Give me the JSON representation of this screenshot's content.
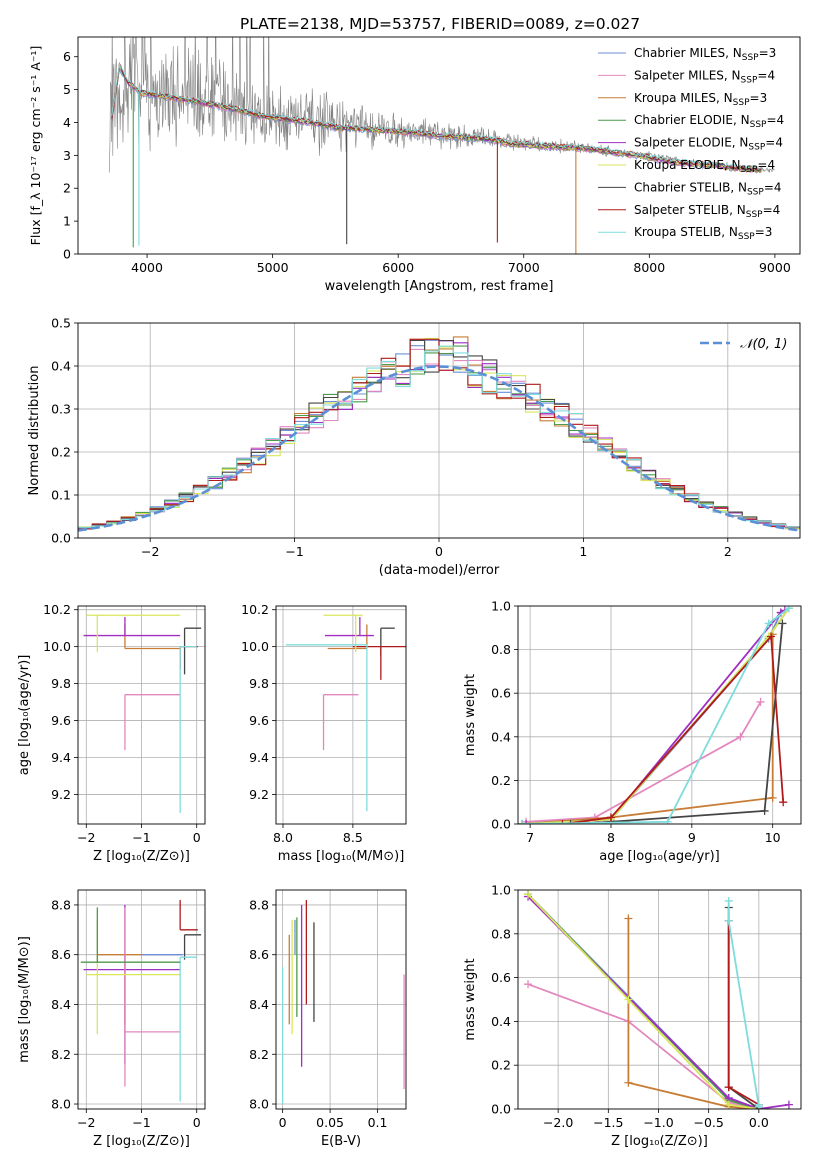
{
  "figure": {
    "title": "PLATE=2138, MJD=53757, FIBERID=0089, z=0.027"
  },
  "series_styles": [
    {
      "name": "Chabrier MILES",
      "nssp": "3",
      "color": "#6f8fd8"
    },
    {
      "name": "Salpeter MILES",
      "nssp": "4",
      "color": "#e388be"
    },
    {
      "name": "Kroupa MILES",
      "nssp": "3",
      "color": "#c77d35"
    },
    {
      "name": "Chabrier ELODIE",
      "nssp": "4",
      "color": "#4c9a4c"
    },
    {
      "name": "Salpeter ELODIE",
      "nssp": "4",
      "color": "#a02ec2"
    },
    {
      "name": "Kroupa ELODIE",
      "nssp": "4",
      "color": "#d9e65c"
    },
    {
      "name": "Chabrier STELIB",
      "nssp": "4",
      "color": "#454545"
    },
    {
      "name": "Salpeter STELIB",
      "nssp": "4",
      "color": "#b01b1b"
    },
    {
      "name": "Kroupa STELIB",
      "nssp": "3",
      "color": "#7fdcdc"
    }
  ],
  "chart_data": [
    {
      "id": "spectrum",
      "type": "line",
      "xlabel": "wavelength [Angstrom, rest frame]",
      "ylabel": "Flux [f_λ 10⁻¹⁷ erg cm⁻² s⁻¹ A⁻¹]",
      "xlim": [
        3450,
        9200
      ],
      "ylim": [
        0,
        6.6
      ],
      "xticks": [
        4000,
        5000,
        6000,
        7000,
        8000,
        9000
      ],
      "yticks": [
        0,
        1,
        2,
        3,
        4,
        5,
        6
      ],
      "data_color": "#808080",
      "data_envelope": {
        "x": [
          3700,
          3800,
          3900,
          4000,
          4200,
          4400,
          4600,
          4800,
          5000,
          5200,
          5400,
          5600,
          5800,
          6000,
          6200,
          6400,
          6600,
          6800,
          7000,
          7200,
          7400,
          7600,
          7800,
          8000,
          8200,
          8400,
          8600,
          8800,
          9000
        ],
        "y": [
          4.2,
          5.3,
          5.2,
          5.0,
          4.9,
          4.75,
          4.55,
          4.4,
          4.2,
          4.1,
          4.0,
          3.9,
          3.8,
          3.75,
          3.7,
          3.6,
          3.55,
          3.5,
          3.35,
          3.3,
          3.25,
          3.2,
          3.05,
          3.0,
          2.85,
          2.75,
          2.7,
          2.6,
          2.55
        ],
        "noise": [
          2.0,
          2.3,
          2.0,
          1.8,
          1.6,
          1.5,
          1.3,
          1.2,
          1.1,
          1.0,
          0.9,
          0.75,
          0.6,
          0.5,
          0.45,
          0.4,
          0.35,
          0.3,
          0.25,
          0.2,
          0.2,
          0.18,
          0.15,
          0.13,
          0.12,
          0.11,
          0.1,
          0.1,
          0.1
        ]
      },
      "model": {
        "x": [
          3720,
          3780,
          3850,
          3950,
          4100,
          4300,
          4500,
          4700,
          4900,
          5100,
          5300,
          5500,
          5700,
          5900,
          6100,
          6300,
          6500,
          6700,
          6900,
          7100,
          7300,
          7500,
          7700,
          7900,
          8100,
          8300,
          8500,
          8700,
          8900
        ],
        "y": [
          4.1,
          5.7,
          5.2,
          4.9,
          4.8,
          4.7,
          4.55,
          4.4,
          4.2,
          4.1,
          4.0,
          3.85,
          3.8,
          3.75,
          3.7,
          3.6,
          3.55,
          3.5,
          3.35,
          3.3,
          3.25,
          3.2,
          3.1,
          3.0,
          2.85,
          2.75,
          2.7,
          2.6,
          2.55
        ]
      },
      "legend": "top-right"
    },
    {
      "id": "residuals",
      "type": "histogram",
      "xlabel": "(data-model)/error",
      "ylabel": "Normed distribution",
      "xlim": [
        -2.5,
        2.5
      ],
      "ylim": [
        0,
        0.5
      ],
      "xticks": [
        -2,
        -1,
        0,
        1,
        2
      ],
      "yticks": [
        0.0,
        0.1,
        0.2,
        0.3,
        0.4,
        0.5
      ],
      "bin_width": 0.1,
      "bins_start": -2.5,
      "reference_label": "𝒩(0, 1)",
      "reference_color": "#5b8fd6",
      "grid": true,
      "legend": "top-right"
    },
    {
      "id": "age-vs-Z",
      "type": "errorbar",
      "xlabel": "Z [log₁₀(Z/Z⊙)]",
      "ylabel": "age [log₁₀(age/yr)]",
      "xlim": [
        -2.15,
        0.15
      ],
      "ylim": [
        9.04,
        10.22
      ],
      "xticks": [
        -2,
        -1,
        0
      ],
      "yticks": [
        9.2,
        9.4,
        9.6,
        9.8,
        10.0,
        10.2
      ],
      "points": [
        {
          "x": -0.22,
          "y": 10.1,
          "xerr": [
            0.0,
            0.3
          ],
          "yerr": [
            0.25,
            0.0
          ],
          "c": 6
        },
        {
          "x": -0.3,
          "y": 10.0,
          "xerr": [
            0.0,
            0.32
          ],
          "yerr": [
            0.12,
            0.0
          ],
          "c": 7
        },
        {
          "x": -1.3,
          "y": 9.99,
          "xerr": [
            0.0,
            1.0
          ],
          "yerr": [
            0.0,
            0.13
          ],
          "c": 2
        },
        {
          "x": -1.3,
          "y": 10.06,
          "xerr": [
            0.75,
            1.0
          ],
          "yerr": [
            0.0,
            0.1
          ],
          "c": 4
        },
        {
          "x": -1.3,
          "y": 9.74,
          "xerr": [
            0.0,
            1.0
          ],
          "yerr": [
            0.3,
            0.0
          ],
          "c": 1
        },
        {
          "x": -1.8,
          "y": 10.17,
          "xerr": [
            0.2,
            1.5
          ],
          "yerr": [
            0.2,
            0.0
          ],
          "c": 5
        },
        {
          "x": -0.3,
          "y": 10.0,
          "xerr": [
            0.0,
            0.3
          ],
          "yerr": [
            0.9,
            0.0
          ],
          "c": 8
        }
      ],
      "grid": true
    },
    {
      "id": "age-vs-mass",
      "type": "errorbar",
      "xlabel": "mass [log₁₀(M/M⊙)]",
      "ylabel": "",
      "xlim": [
        7.95,
        8.88
      ],
      "ylim": [
        9.04,
        10.22
      ],
      "xticks": [
        8.0,
        8.5
      ],
      "yticks": [
        9.2,
        9.4,
        9.6,
        9.8,
        10.0,
        10.2
      ],
      "points": [
        {
          "x": 8.7,
          "y": 10.1,
          "xerr": [
            0.0,
            0.1
          ],
          "yerr": [
            0.15,
            0.0
          ],
          "c": 6
        },
        {
          "x": 8.7,
          "y": 10.0,
          "xerr": [
            0.2,
            0.18
          ],
          "yerr": [
            0.18,
            0.0
          ],
          "c": 7
        },
        {
          "x": 8.6,
          "y": 9.99,
          "xerr": [
            0.28,
            0.0
          ],
          "yerr": [
            0.0,
            0.13
          ],
          "c": 2
        },
        {
          "x": 8.55,
          "y": 10.06,
          "xerr": [
            0.25,
            0.1
          ],
          "yerr": [
            0.0,
            0.1
          ],
          "c": 4
        },
        {
          "x": 8.29,
          "y": 9.74,
          "xerr": [
            0.0,
            0.25
          ],
          "yerr": [
            0.3,
            0.0
          ],
          "c": 1
        },
        {
          "x": 8.52,
          "y": 10.17,
          "xerr": [
            0.23,
            0.05
          ],
          "yerr": [
            0.2,
            0.0
          ],
          "c": 5
        },
        {
          "x": 8.6,
          "y": 10.01,
          "xerr": [
            0.58,
            0.0
          ],
          "yerr": [
            0.9,
            0.0
          ],
          "c": 8
        }
      ],
      "grid": true
    },
    {
      "id": "massweight-vs-age",
      "type": "line",
      "xlabel": "age [log₁₀(age/yr)]",
      "ylabel": "mass weight",
      "xlim": [
        6.85,
        10.35
      ],
      "ylim": [
        0,
        1
      ],
      "xticks": [
        7,
        8,
        9,
        10
      ],
      "yticks": [
        0.0,
        0.2,
        0.4,
        0.6,
        0.8,
        1.0
      ],
      "series": [
        {
          "c": 0,
          "x": [
            6.9,
            8.0,
            9.95,
            10.1
          ],
          "y": [
            0.0,
            0.02,
            0.85,
            0.97
          ]
        },
        {
          "c": 1,
          "x": [
            6.95,
            7.8,
            9.6,
            9.85
          ],
          "y": [
            0.01,
            0.03,
            0.4,
            0.56
          ]
        },
        {
          "c": 2,
          "x": [
            6.9,
            8.0,
            10.0,
            10.0
          ],
          "y": [
            0.0,
            0.03,
            0.12,
            0.87
          ]
        },
        {
          "c": 3,
          "x": [
            6.9,
            8.0,
            9.95,
            10.2
          ],
          "y": [
            0.0,
            0.02,
            0.86,
            0.99
          ]
        },
        {
          "c": 4,
          "x": [
            6.95,
            8.0,
            10.1,
            10.15
          ],
          "y": [
            0.0,
            0.02,
            0.97,
            0.98
          ]
        },
        {
          "c": 5,
          "x": [
            6.9,
            8.0,
            9.95,
            10.2
          ],
          "y": [
            0.0,
            0.02,
            0.86,
            0.99
          ]
        },
        {
          "c": 6,
          "x": [
            7.5,
            8.0,
            9.9,
            10.12
          ],
          "y": [
            0.0,
            0.01,
            0.06,
            0.92
          ]
        },
        {
          "c": 7,
          "x": [
            7.4,
            8.0,
            9.98,
            10.13
          ],
          "y": [
            0.0,
            0.03,
            0.86,
            0.1
          ]
        },
        {
          "c": 8,
          "x": [
            6.9,
            8.7,
            9.95,
            10.2
          ],
          "y": [
            0.0,
            0.01,
            0.92,
            0.99
          ]
        }
      ],
      "grid": true
    },
    {
      "id": "mass-vs-Z",
      "type": "errorbar",
      "xlabel": "Z [log₁₀(Z/Z⊙)]",
      "ylabel": "mass [log₁₀(M/M⊙)]",
      "xlim": [
        -2.15,
        0.15
      ],
      "ylim": [
        7.98,
        8.86
      ],
      "xticks": [
        -2,
        -1,
        0
      ],
      "yticks": [
        8.0,
        8.2,
        8.4,
        8.6,
        8.8
      ],
      "points": [
        {
          "x": -0.22,
          "y": 8.68,
          "xerr": [
            0.0,
            0.3
          ],
          "yerr": [
            0.1,
            0.0
          ],
          "c": 6
        },
        {
          "x": -0.3,
          "y": 8.7,
          "xerr": [
            0.0,
            0.32
          ],
          "yerr": [
            0.0,
            0.12
          ],
          "c": 7
        },
        {
          "x": -1.3,
          "y": 8.6,
          "xerr": [
            0.5,
            1.0
          ],
          "yerr": [
            0.28,
            0.0
          ],
          "c": 2
        },
        {
          "x": -1.3,
          "y": 8.54,
          "xerr": [
            0.75,
            1.0
          ],
          "yerr": [
            0.38,
            0.26
          ],
          "c": 4
        },
        {
          "x": -1.3,
          "y": 8.29,
          "xerr": [
            0.0,
            1.0
          ],
          "yerr": [
            0.22,
            0.5
          ],
          "c": 1
        },
        {
          "x": -1.8,
          "y": 8.52,
          "xerr": [
            0.2,
            1.5
          ],
          "yerr": [
            0.24,
            0.22
          ],
          "c": 5
        },
        {
          "x": -0.3,
          "y": 8.59,
          "xerr": [
            0.0,
            0.3
          ],
          "yerr": [
            0.58,
            0.0
          ],
          "c": 8
        },
        {
          "x": -0.25,
          "y": 8.6,
          "xerr": [
            0.75,
            0.0
          ],
          "yerr": [
            0.0,
            0.0
          ],
          "c": 0
        },
        {
          "x": -1.8,
          "y": 8.57,
          "xerr": [
            0.3,
            1.5
          ],
          "yerr": [
            0.0,
            0.22
          ],
          "c": 3
        }
      ],
      "grid": true
    },
    {
      "id": "mass-vs-ebv",
      "type": "errorbar",
      "xlabel": "E(B-V)",
      "ylabel": "",
      "xlim": [
        -0.007,
        0.13
      ],
      "ylim": [
        7.98,
        8.86
      ],
      "xticks": [
        0.0,
        0.05,
        0.1
      ],
      "yticks": [
        8.0,
        8.2,
        8.4,
        8.6,
        8.8
      ],
      "points": [
        {
          "x": 0.033,
          "y": 8.53,
          "xerr": [
            0.0,
            0.0
          ],
          "yerr": [
            0.2,
            0.2
          ],
          "c": 6
        },
        {
          "x": 0.025,
          "y": 8.7,
          "xerr": [
            0.0,
            0.0
          ],
          "yerr": [
            0.3,
            0.12
          ],
          "c": 7
        },
        {
          "x": 0.007,
          "y": 8.5,
          "xerr": [
            0.0,
            0.0
          ],
          "yerr": [
            0.18,
            0.18
          ],
          "c": 2
        },
        {
          "x": 0.02,
          "y": 8.55,
          "xerr": [
            0.0,
            0.0
          ],
          "yerr": [
            0.4,
            0.25
          ],
          "c": 4
        },
        {
          "x": 0.128,
          "y": 8.29,
          "xerr": [
            0.0,
            0.0
          ],
          "yerr": [
            0.23,
            0.23
          ],
          "c": 1
        },
        {
          "x": 0.01,
          "y": 8.52,
          "xerr": [
            0.0,
            0.0
          ],
          "yerr": [
            0.24,
            0.22
          ],
          "c": 5
        },
        {
          "x": 0.0,
          "y": 8.4,
          "xerr": [
            0.0,
            0.0
          ],
          "yerr": [
            0.4,
            0.15
          ],
          "c": 8
        },
        {
          "x": 0.013,
          "y": 8.6,
          "xerr": [
            0.0,
            0.0
          ],
          "yerr": [
            0.0,
            0.14
          ],
          "c": 0
        },
        {
          "x": 0.015,
          "y": 8.65,
          "xerr": [
            0.0,
            0.0
          ],
          "yerr": [
            0.3,
            0.1
          ],
          "c": 3
        }
      ],
      "grid": true
    },
    {
      "id": "massweight-vs-Z",
      "type": "line",
      "xlabel": "Z [log₁₀(Z/Z⊙)]",
      "ylabel": "mass weight",
      "xlim": [
        -2.4,
        0.42
      ],
      "ylim": [
        0,
        1
      ],
      "xticks": [
        -2.0,
        -1.5,
        -1.0,
        -0.5,
        0.0
      ],
      "yticks": [
        0.0,
        0.2,
        0.4,
        0.6,
        0.8,
        1.0
      ],
      "series": [
        {
          "c": 0,
          "x": [
            -2.3,
            -0.3,
            0.0
          ],
          "y": [
            0.98,
            0.05,
            0.0
          ]
        },
        {
          "c": 1,
          "x": [
            -2.3,
            -1.3,
            -0.3,
            0.0
          ],
          "y": [
            0.57,
            0.4,
            0.03,
            0.0
          ]
        },
        {
          "c": 2,
          "x": [
            -1.3,
            -1.3,
            -0.3,
            0.0
          ],
          "y": [
            0.87,
            0.12,
            0.01,
            0.0
          ]
        },
        {
          "c": 3,
          "x": [
            -2.3,
            -0.3,
            0.0
          ],
          "y": [
            0.98,
            0.04,
            0.0
          ]
        },
        {
          "c": 4,
          "x": [
            -2.3,
            -0.3,
            0.0,
            0.3
          ],
          "y": [
            0.97,
            0.05,
            0.0,
            0.02
          ]
        },
        {
          "c": 5,
          "x": [
            -2.3,
            -1.3,
            -0.3,
            0.0
          ],
          "y": [
            0.98,
            0.5,
            0.02,
            0.0
          ]
        },
        {
          "c": 6,
          "x": [
            -0.3,
            -0.3,
            0.0
          ],
          "y": [
            0.92,
            0.1,
            0.0
          ]
        },
        {
          "c": 7,
          "x": [
            -0.3,
            -0.3,
            0.0
          ],
          "y": [
            0.86,
            0.1,
            0.02
          ]
        },
        {
          "c": 8,
          "x": [
            -0.3,
            -0.3,
            0.0,
            0.0
          ],
          "y": [
            0.95,
            0.86,
            0.01,
            0.02
          ]
        }
      ],
      "grid": true
    }
  ]
}
